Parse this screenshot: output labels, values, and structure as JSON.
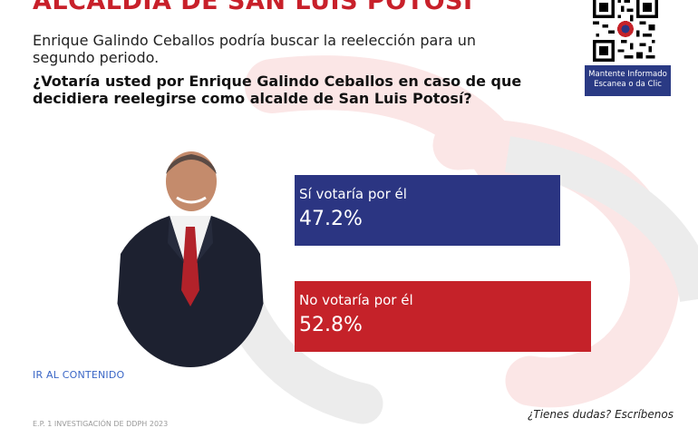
{
  "header": {
    "title": "ALCALDÍA DE SAN LUIS POTOSÍ",
    "intro": "Enrique Galindo Ceballos podría buscar la reelección para un segundo periodo.",
    "question": "¿Votaría usted por Enrique Galindo Ceballos en caso de que decidiera reelegirse como alcalde de San Luis Potosí?"
  },
  "qr": {
    "caption_line1": "Mantente Informado",
    "caption_line2": "Escanea o da Clic",
    "icon": "qr-code-icon"
  },
  "portrait": {
    "icon": "candidate-portrait"
  },
  "chart_data": {
    "type": "bar",
    "orientation": "horizontal",
    "categories": [
      "Sí votaría por él",
      "No votaría por él"
    ],
    "values": [
      47.2,
      52.8
    ],
    "value_labels": [
      "47.2%",
      "52.8%"
    ],
    "colors": [
      "#2b3582",
      "#c52229"
    ],
    "xlim": [
      0,
      100
    ]
  },
  "footer": {
    "link": "IR AL CONTENIDO",
    "contact": "¿Tienes dudas? Escríbenos",
    "footnote": "E.P. 1 INVESTIGACIÓN DE DDPH 2023"
  },
  "colors": {
    "accent_red": "#c8202a",
    "navy": "#2b3582",
    "link_blue": "#3a66c6"
  }
}
